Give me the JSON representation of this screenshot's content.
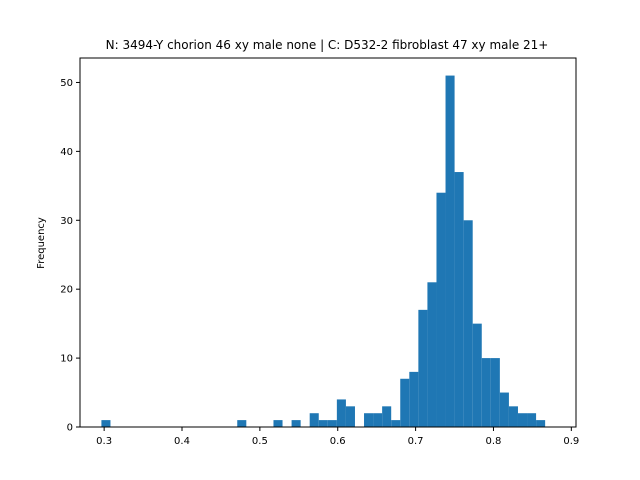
{
  "chart_data": {
    "type": "bar",
    "title": "N: 3494-Y chorion 46 xy male none | C: D532-2 fibroblast 47 xy male 21+",
    "xlabel": "",
    "ylabel": "Frequency",
    "xlim": [
      0.269,
      0.906
    ],
    "ylim": [
      0,
      53.55
    ],
    "xticks": [
      0.3,
      0.4,
      0.5,
      0.6,
      0.7,
      0.8,
      0.9
    ],
    "xtick_labels": [
      "0.3",
      "0.4",
      "0.5",
      "0.6",
      "0.7",
      "0.8",
      "0.9"
    ],
    "yticks": [
      0,
      10,
      20,
      30,
      40,
      50
    ],
    "ytick_labels": [
      "0",
      "10",
      "20",
      "30",
      "40",
      "50"
    ],
    "bar_color": "#1f77b4",
    "grid": false,
    "bin_edges_start": 0.2965,
    "bin_width": 0.01163,
    "counts": [
      1,
      0,
      0,
      0,
      0,
      0,
      0,
      0,
      0,
      0,
      0,
      0,
      0,
      0,
      0,
      1,
      0,
      0,
      0,
      1,
      0,
      1,
      0,
      2,
      1,
      1,
      4,
      3,
      0,
      2,
      2,
      3,
      1,
      7,
      8,
      17,
      21,
      34,
      51,
      37,
      30,
      15,
      10,
      10,
      5,
      3,
      2,
      2,
      1
    ]
  }
}
